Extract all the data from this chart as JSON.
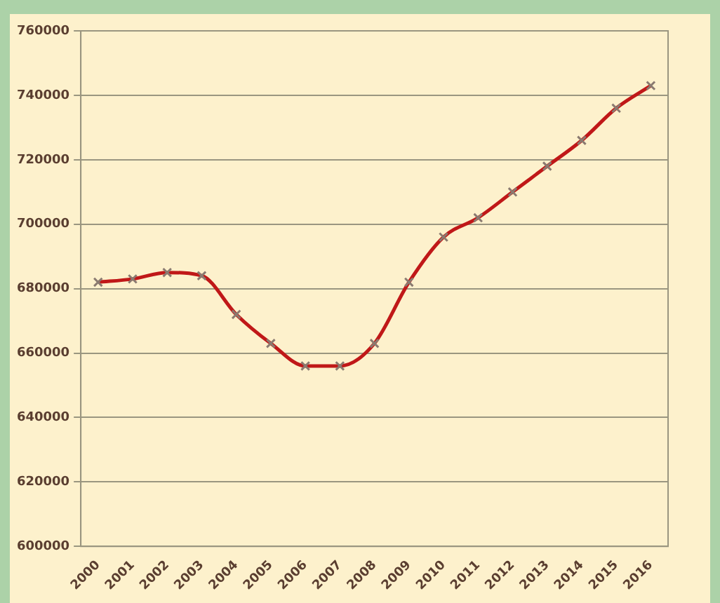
{
  "chart_data": {
    "type": "line",
    "categories": [
      "2000",
      "2001",
      "2002",
      "2003",
      "2004",
      "2005",
      "2006",
      "2007",
      "2008",
      "2009",
      "2010",
      "2011",
      "2012",
      "2013",
      "2014",
      "2015",
      "2016"
    ],
    "series": [
      {
        "color": "#c01818",
        "values": [
          682000,
          683000,
          685000,
          684000,
          672000,
          663000,
          656000,
          656000,
          663000,
          682000,
          696000,
          702000,
          710000,
          718000,
          726000,
          736000,
          743000
        ]
      }
    ],
    "ylim": [
      600000,
      760000
    ],
    "yticks": [
      600000,
      620000,
      640000,
      660000,
      680000,
      700000,
      720000,
      740000,
      760000
    ],
    "grid": "y",
    "legend": false,
    "marker": "cross",
    "line_style": "solid"
  }
}
